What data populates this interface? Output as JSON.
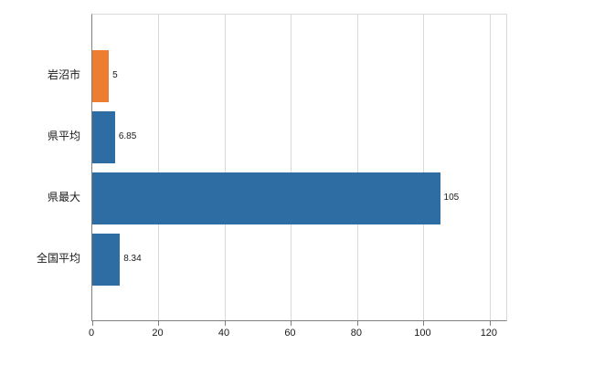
{
  "chart_data": {
    "type": "bar",
    "orientation": "horizontal",
    "title": "",
    "xlabel": "",
    "ylabel": "",
    "categories": [
      "岩沼市",
      "県平均",
      "県最大",
      "全国平均"
    ],
    "values": [
      5,
      6.85,
      105,
      8.34
    ],
    "data_labels": [
      "5",
      "6.85",
      "105",
      "8.34"
    ],
    "bar_colors": [
      "#ed7d31",
      "#2e6da4",
      "#2e6da4",
      "#2e6da4"
    ],
    "x_ticks": [
      0,
      20,
      40,
      60,
      80,
      100,
      120
    ],
    "xlim": [
      0,
      125
    ],
    "grid": true,
    "legend": false
  },
  "colors": {
    "background": "#ffffff",
    "axis": "#808080",
    "grid": "#d9d9d9",
    "text": "#1a1a1a",
    "bar_blue": "#2e6da4",
    "bar_orange": "#ed7d31"
  }
}
